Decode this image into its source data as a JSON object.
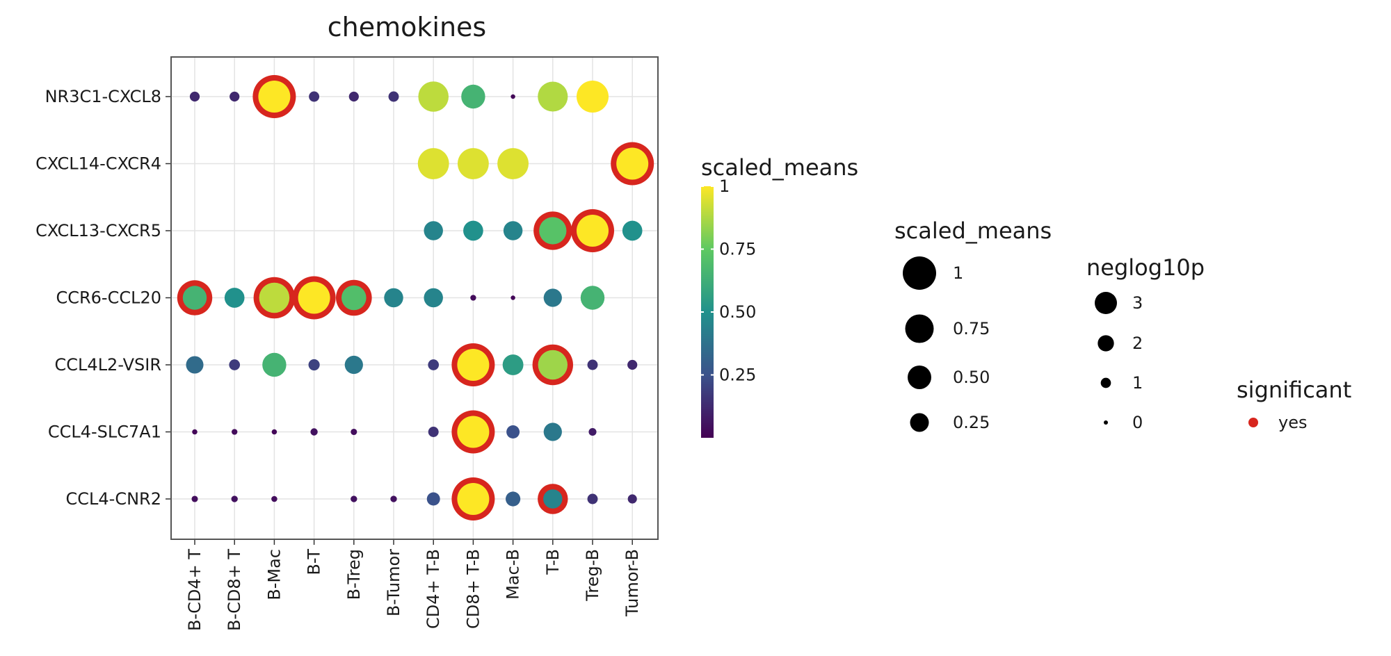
{
  "chart_data": {
    "type": "scatter",
    "subtype": "dot-plot",
    "title": "chemokines",
    "x_categories": [
      "B-CD4+ T",
      "B-CD8+ T",
      "B-Mac",
      "B-T",
      "B-Treg",
      "B-Tumor",
      "CD4+ T-B",
      "CD8+ T-B",
      "Mac-B",
      "T-B",
      "Treg-B",
      "Tumor-B"
    ],
    "y_categories": [
      "NR3C1-CXCL8",
      "CXCL14-CXCR4",
      "CXCL13-CXCR5",
      "CCR6-CCL20",
      "CCL4L2-VSIR",
      "CCL4-SLC7A1",
      "CCL4-CNR2"
    ],
    "points": [
      {
        "x": "B-CD4+ T",
        "y": "NR3C1-CXCL8",
        "scaled_means": 0.12,
        "neglog10p": 1,
        "significant": false
      },
      {
        "x": "B-CD8+ T",
        "y": "NR3C1-CXCL8",
        "scaled_means": 0.12,
        "neglog10p": 1,
        "significant": false
      },
      {
        "x": "B-Mac",
        "y": "NR3C1-CXCL8",
        "scaled_means": 1.0,
        "neglog10p": 3,
        "significant": true
      },
      {
        "x": "B-T",
        "y": "NR3C1-CXCL8",
        "scaled_means": 0.15,
        "neglog10p": 1,
        "significant": false
      },
      {
        "x": "B-Treg",
        "y": "NR3C1-CXCL8",
        "scaled_means": 0.12,
        "neglog10p": 1,
        "significant": false
      },
      {
        "x": "B-Tumor",
        "y": "NR3C1-CXCL8",
        "scaled_means": 0.15,
        "neglog10p": 1,
        "significant": false
      },
      {
        "x": "CD4+ T-B",
        "y": "NR3C1-CXCL8",
        "scaled_means": 0.9,
        "neglog10p": 3,
        "significant": false
      },
      {
        "x": "CD8+ T-B",
        "y": "NR3C1-CXCL8",
        "scaled_means": 0.65,
        "neglog10p": 2.4,
        "significant": false
      },
      {
        "x": "Mac-B",
        "y": "NR3C1-CXCL8",
        "scaled_means": 0.02,
        "neglog10p": 0,
        "significant": false
      },
      {
        "x": "T-B",
        "y": "NR3C1-CXCL8",
        "scaled_means": 0.88,
        "neglog10p": 3,
        "significant": false
      },
      {
        "x": "Treg-B",
        "y": "NR3C1-CXCL8",
        "scaled_means": 1.0,
        "neglog10p": 3,
        "significant": false
      },
      {
        "x": "CD4+ T-B",
        "y": "CXCL14-CXCR4",
        "scaled_means": 0.95,
        "neglog10p": 3,
        "significant": false
      },
      {
        "x": "CD8+ T-B",
        "y": "CXCL14-CXCR4",
        "scaled_means": 0.95,
        "neglog10p": 3,
        "significant": false
      },
      {
        "x": "Mac-B",
        "y": "CXCL14-CXCR4",
        "scaled_means": 0.95,
        "neglog10p": 3,
        "significant": false
      },
      {
        "x": "Tumor-B",
        "y": "CXCL14-CXCR4",
        "scaled_means": 1.0,
        "neglog10p": 3,
        "significant": true
      },
      {
        "x": "CD4+ T-B",
        "y": "CXCL13-CXCR5",
        "scaled_means": 0.45,
        "neglog10p": 2,
        "significant": false
      },
      {
        "x": "CD8+ T-B",
        "y": "CXCL13-CXCR5",
        "scaled_means": 0.5,
        "neglog10p": 2,
        "significant": false
      },
      {
        "x": "Mac-B",
        "y": "CXCL13-CXCR5",
        "scaled_means": 0.45,
        "neglog10p": 2,
        "significant": false
      },
      {
        "x": "T-B",
        "y": "CXCL13-CXCR5",
        "scaled_means": 0.72,
        "neglog10p": 3,
        "significant": true
      },
      {
        "x": "Treg-B",
        "y": "CXCL13-CXCR5",
        "scaled_means": 1.0,
        "neglog10p": 3,
        "significant": true
      },
      {
        "x": "Tumor-B",
        "y": "CXCL13-CXCR5",
        "scaled_means": 0.5,
        "neglog10p": 2,
        "significant": false
      },
      {
        "x": "B-CD4+ T",
        "y": "CCR6-CCL20",
        "scaled_means": 0.65,
        "neglog10p": 2.4,
        "significant": true
      },
      {
        "x": "B-CD8+ T",
        "y": "CCR6-CCL20",
        "scaled_means": 0.5,
        "neglog10p": 2,
        "significant": false
      },
      {
        "x": "B-Mac",
        "y": "CCR6-CCL20",
        "scaled_means": 0.9,
        "neglog10p": 3,
        "significant": true
      },
      {
        "x": "B-T",
        "y": "CCR6-CCL20",
        "scaled_means": 1.0,
        "neglog10p": 3,
        "significant": true
      },
      {
        "x": "B-Treg",
        "y": "CCR6-CCL20",
        "scaled_means": 0.7,
        "neglog10p": 2.4,
        "significant": true
      },
      {
        "x": "B-Tumor",
        "y": "CCR6-CCL20",
        "scaled_means": 0.45,
        "neglog10p": 2,
        "significant": false
      },
      {
        "x": "CD4+ T-B",
        "y": "CCR6-CCL20",
        "scaled_means": 0.45,
        "neglog10p": 2,
        "significant": false
      },
      {
        "x": "CD8+ T-B",
        "y": "CCR6-CCL20",
        "scaled_means": 0.03,
        "neglog10p": 0.3,
        "significant": false
      },
      {
        "x": "Mac-B",
        "y": "CCR6-CCL20",
        "scaled_means": 0.02,
        "neglog10p": 0,
        "significant": false
      },
      {
        "x": "T-B",
        "y": "CCR6-CCL20",
        "scaled_means": 0.4,
        "neglog10p": 2,
        "significant": false
      },
      {
        "x": "Treg-B",
        "y": "CCR6-CCL20",
        "scaled_means": 0.65,
        "neglog10p": 2.4,
        "significant": false
      },
      {
        "x": "B-CD4+ T",
        "y": "CCL4L2-VSIR",
        "scaled_means": 0.35,
        "neglog10p": 2,
        "significant": false
      },
      {
        "x": "B-CD8+ T",
        "y": "CCL4L2-VSIR",
        "scaled_means": 0.18,
        "neglog10p": 1,
        "significant": false
      },
      {
        "x": "B-Mac",
        "y": "CCL4L2-VSIR",
        "scaled_means": 0.65,
        "neglog10p": 2.4,
        "significant": false
      },
      {
        "x": "B-T",
        "y": "CCL4L2-VSIR",
        "scaled_means": 0.2,
        "neglog10p": 1,
        "significant": false
      },
      {
        "x": "B-Treg",
        "y": "CCL4L2-VSIR",
        "scaled_means": 0.4,
        "neglog10p": 2,
        "significant": false
      },
      {
        "x": "CD4+ T-B",
        "y": "CCL4L2-VSIR",
        "scaled_means": 0.18,
        "neglog10p": 1,
        "significant": false
      },
      {
        "x": "CD8+ T-B",
        "y": "CCL4L2-VSIR",
        "scaled_means": 1.0,
        "neglog10p": 3,
        "significant": true
      },
      {
        "x": "Mac-B",
        "y": "CCL4L2-VSIR",
        "scaled_means": 0.55,
        "neglog10p": 2,
        "significant": false
      },
      {
        "x": "T-B",
        "y": "CCL4L2-VSIR",
        "scaled_means": 0.85,
        "neglog10p": 3,
        "significant": true
      },
      {
        "x": "Treg-B",
        "y": "CCL4L2-VSIR",
        "scaled_means": 0.15,
        "neglog10p": 1,
        "significant": false
      },
      {
        "x": "Tumor-B",
        "y": "CCL4L2-VSIR",
        "scaled_means": 0.12,
        "neglog10p": 1,
        "significant": false
      },
      {
        "x": "B-CD4+ T",
        "y": "CCL4-SLC7A1",
        "scaled_means": 0.02,
        "neglog10p": 0.2,
        "significant": false
      },
      {
        "x": "B-CD8+ T",
        "y": "CCL4-SLC7A1",
        "scaled_means": 0.03,
        "neglog10p": 0.3,
        "significant": false
      },
      {
        "x": "B-Mac",
        "y": "CCL4-SLC7A1",
        "scaled_means": 0.02,
        "neglog10p": 0.2,
        "significant": false
      },
      {
        "x": "B-T",
        "y": "CCL4-SLC7A1",
        "scaled_means": 0.05,
        "neglog10p": 0.6,
        "significant": false
      },
      {
        "x": "B-Treg",
        "y": "CCL4-SLC7A1",
        "scaled_means": 0.04,
        "neglog10p": 0.4,
        "significant": false
      },
      {
        "x": "CD4+ T-B",
        "y": "CCL4-SLC7A1",
        "scaled_means": 0.15,
        "neglog10p": 1,
        "significant": false
      },
      {
        "x": "CD8+ T-B",
        "y": "CCL4-SLC7A1",
        "scaled_means": 1.0,
        "neglog10p": 3,
        "significant": true
      },
      {
        "x": "Mac-B",
        "y": "CCL4-SLC7A1",
        "scaled_means": 0.25,
        "neglog10p": 1.3,
        "significant": false
      },
      {
        "x": "T-B",
        "y": "CCL4-SLC7A1",
        "scaled_means": 0.4,
        "neglog10p": 2,
        "significant": false
      },
      {
        "x": "Treg-B",
        "y": "CCL4-SLC7A1",
        "scaled_means": 0.08,
        "neglog10p": 0.6,
        "significant": false
      },
      {
        "x": "B-CD4+ T",
        "y": "CCL4-CNR2",
        "scaled_means": 0.04,
        "neglog10p": 0.4,
        "significant": false
      },
      {
        "x": "B-CD8+ T",
        "y": "CCL4-CNR2",
        "scaled_means": 0.05,
        "neglog10p": 0.4,
        "significant": false
      },
      {
        "x": "B-Mac",
        "y": "CCL4-CNR2",
        "scaled_means": 0.04,
        "neglog10p": 0.3,
        "significant": false
      },
      {
        "x": "B-Treg",
        "y": "CCL4-CNR2",
        "scaled_means": 0.05,
        "neglog10p": 0.4,
        "significant": false
      },
      {
        "x": "B-Tumor",
        "y": "CCL4-CNR2",
        "scaled_means": 0.05,
        "neglog10p": 0.4,
        "significant": false
      },
      {
        "x": "CD4+ T-B",
        "y": "CCL4-CNR2",
        "scaled_means": 0.25,
        "neglog10p": 1.3,
        "significant": false
      },
      {
        "x": "CD8+ T-B",
        "y": "CCL4-CNR2",
        "scaled_means": 1.0,
        "neglog10p": 3,
        "significant": true
      },
      {
        "x": "Mac-B",
        "y": "CCL4-CNR2",
        "scaled_means": 0.3,
        "neglog10p": 1.5,
        "significant": false
      },
      {
        "x": "T-B",
        "y": "CCL4-CNR2",
        "scaled_means": 0.45,
        "neglog10p": 2,
        "significant": true
      },
      {
        "x": "Treg-B",
        "y": "CCL4-CNR2",
        "scaled_means": 0.15,
        "neglog10p": 1,
        "significant": false
      },
      {
        "x": "Tumor-B",
        "y": "CCL4-CNR2",
        "scaled_means": 0.12,
        "neglog10p": 0.8,
        "significant": false
      }
    ],
    "color_scale": {
      "title": "scaled_means",
      "palette": "viridis",
      "ticks": [
        "0.25",
        "0.50",
        "0.75",
        "1"
      ],
      "tick_values": [
        0.25,
        0.5,
        0.75,
        1.0
      ],
      "range": [
        0,
        1
      ],
      "colors": [
        "#440154",
        "#3b528b",
        "#21918c",
        "#5ec962",
        "#fde725"
      ]
    },
    "size_legends": [
      {
        "title": "scaled_means",
        "labels": [
          "1",
          "0.75",
          "0.50",
          "0.25"
        ],
        "values": [
          1.0,
          0.75,
          0.5,
          0.25
        ]
      },
      {
        "title": "neglog10p",
        "labels": [
          "3",
          "2",
          "1",
          "0"
        ],
        "values": [
          3,
          2,
          1,
          0
        ]
      }
    ],
    "significant_legend": {
      "title": "significant",
      "labels": [
        "yes"
      ],
      "color": "#d7261e"
    },
    "grid": true
  }
}
